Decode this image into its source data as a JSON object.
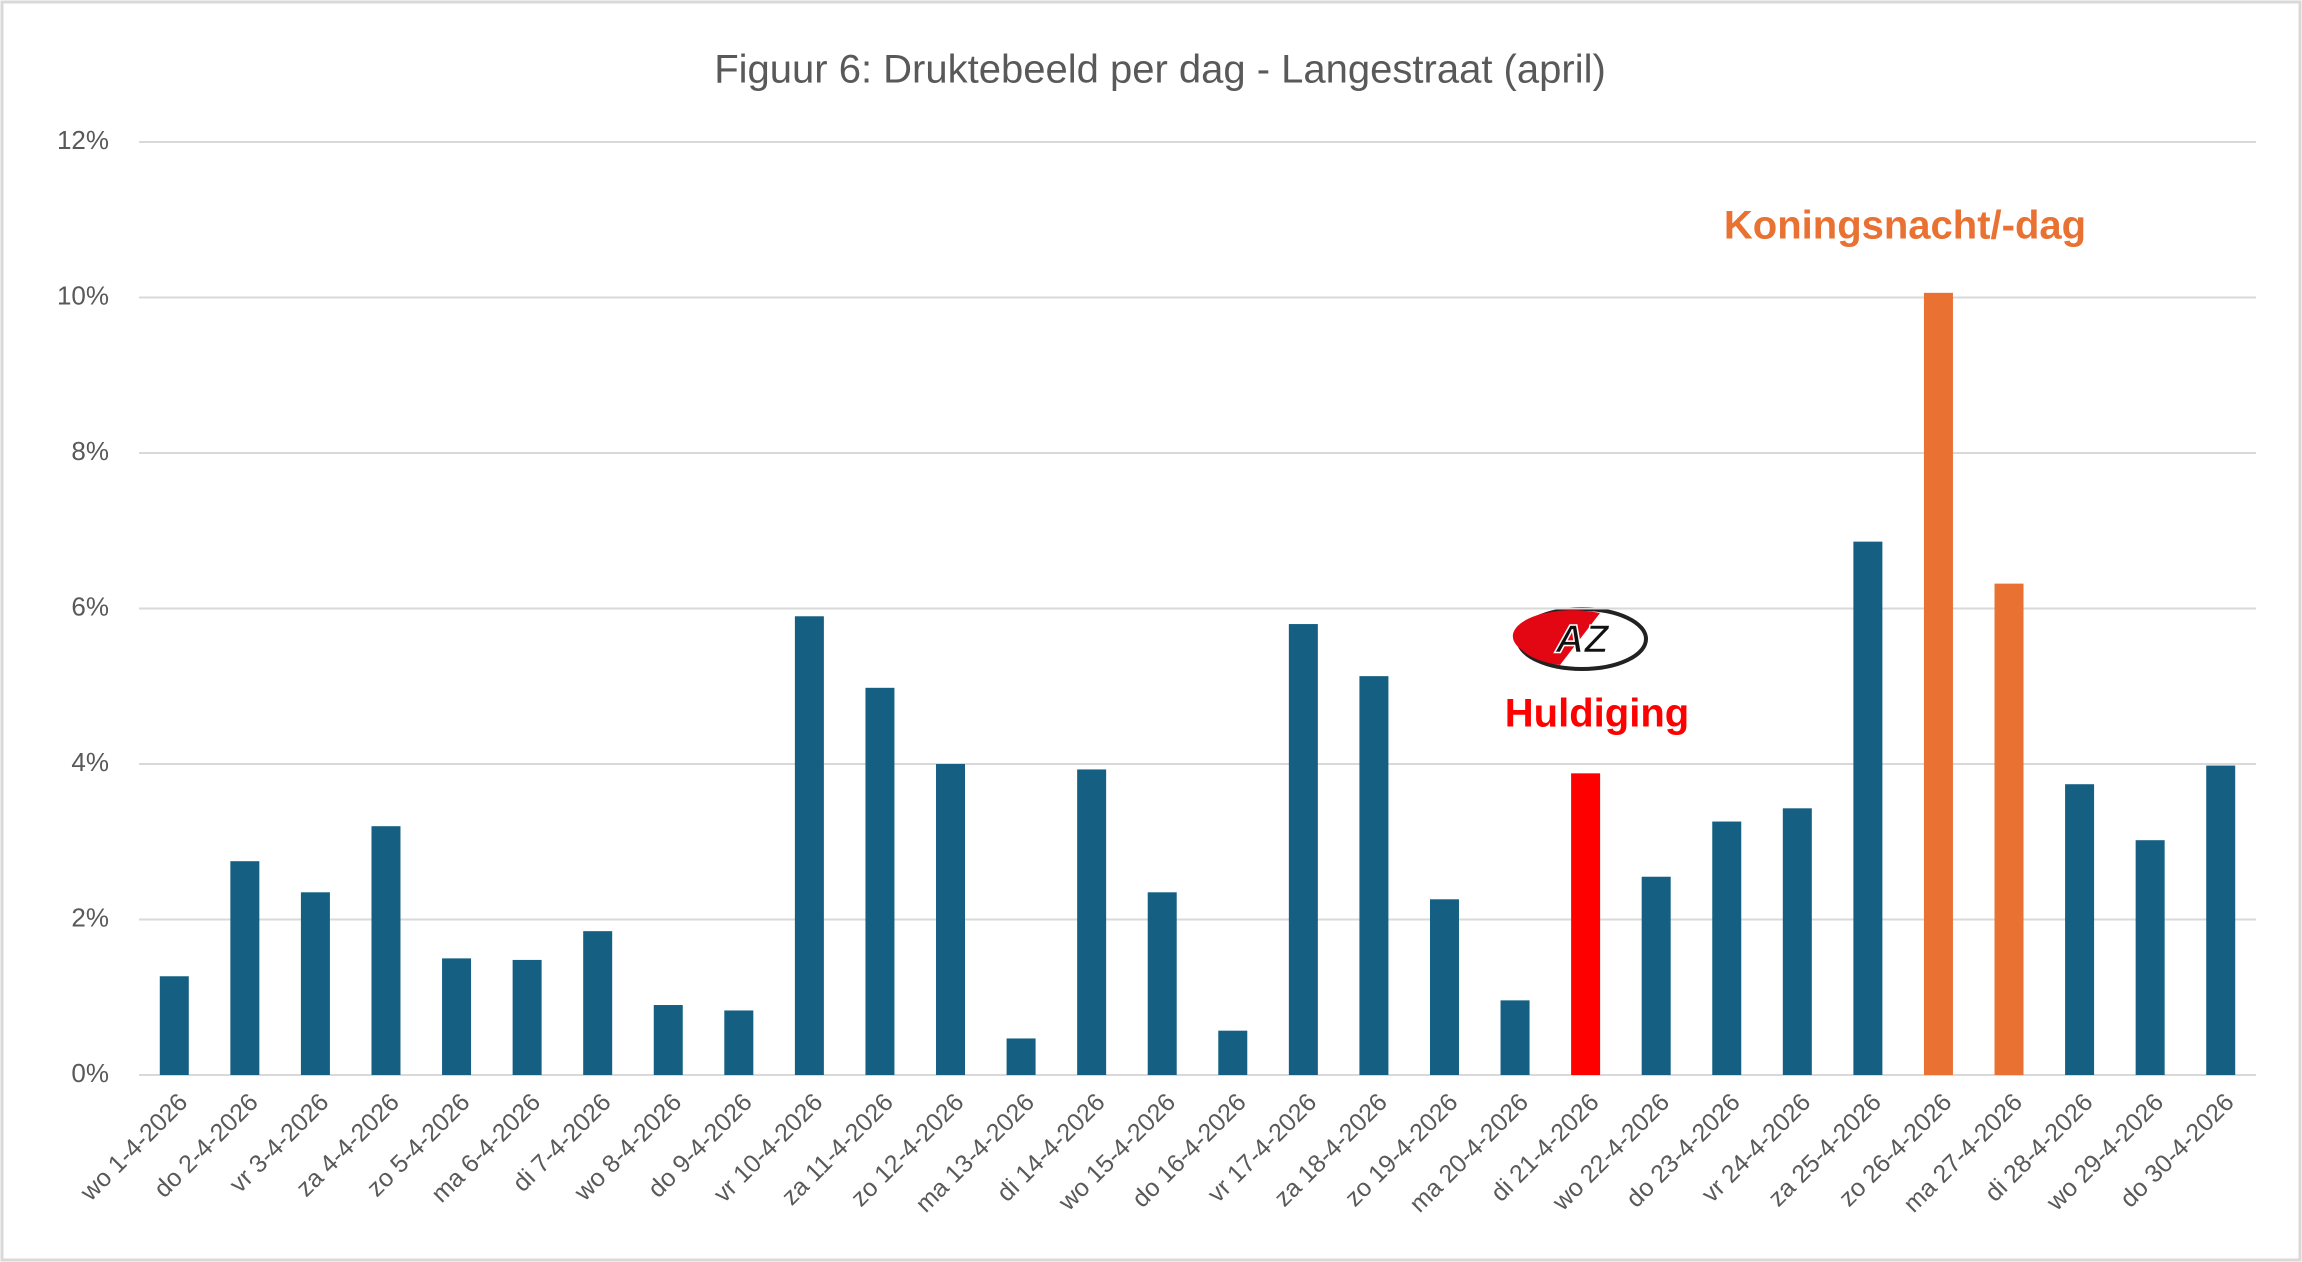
{
  "chart_data": {
    "type": "bar",
    "title": "Figuur 6: Druktebeeld per dag - Langestraat (april)",
    "categories": [
      "wo 1-4-2026",
      "do 2-4-2026",
      "vr 3-4-2026",
      "za 4-4-2026",
      "zo 5-4-2026",
      "ma 6-4-2026",
      "di 7-4-2026",
      "wo 8-4-2026",
      "do 9-4-2026",
      "vr 10-4-2026",
      "za 11-4-2026",
      "zo 12-4-2026",
      "ma 13-4-2026",
      "di 14-4-2026",
      "wo 15-4-2026",
      "do 16-4-2026",
      "vr 17-4-2026",
      "za 18-4-2026",
      "zo 19-4-2026",
      "ma 20-4-2026",
      "di 21-4-2026",
      "wo 22-4-2026",
      "do 23-4-2026",
      "vr 24-4-2026",
      "za 25-4-2026",
      "zo 26-4-2026",
      "ma 27-4-2026",
      "di 28-4-2026",
      "wo 29-4-2026",
      "do 30-4-2026"
    ],
    "values": [
      1.27,
      2.75,
      2.35,
      3.2,
      1.5,
      1.48,
      1.85,
      0.9,
      0.83,
      5.9,
      4.98,
      4.0,
      0.47,
      3.93,
      2.35,
      0.57,
      5.8,
      5.13,
      2.26,
      0.96,
      3.88,
      2.55,
      3.26,
      3.43,
      6.86,
      10.06,
      6.32,
      3.74,
      3.02,
      3.98
    ],
    "colors": [
      "#156082",
      "#156082",
      "#156082",
      "#156082",
      "#156082",
      "#156082",
      "#156082",
      "#156082",
      "#156082",
      "#156082",
      "#156082",
      "#156082",
      "#156082",
      "#156082",
      "#156082",
      "#156082",
      "#156082",
      "#156082",
      "#156082",
      "#156082",
      "#ff0000",
      "#156082",
      "#156082",
      "#156082",
      "#156082",
      "#e97132",
      "#e97132",
      "#156082",
      "#156082",
      "#156082"
    ],
    "ylim": [
      0,
      12
    ],
    "yticks": [
      {
        "value": 0,
        "label": "0%"
      },
      {
        "value": 2,
        "label": "2%"
      },
      {
        "value": 4,
        "label": "4%"
      },
      {
        "value": 6,
        "label": "6%"
      },
      {
        "value": 8,
        "label": "8%"
      },
      {
        "value": 10,
        "label": "10%"
      },
      {
        "value": 12,
        "label": "12%"
      }
    ],
    "grid": true,
    "annotations": [
      {
        "text": "Koningsnacht/-dag",
        "color": "#e97132"
      },
      {
        "text": "Huldiging",
        "color": "#ff0000"
      }
    ],
    "logo_text": "AZ"
  }
}
